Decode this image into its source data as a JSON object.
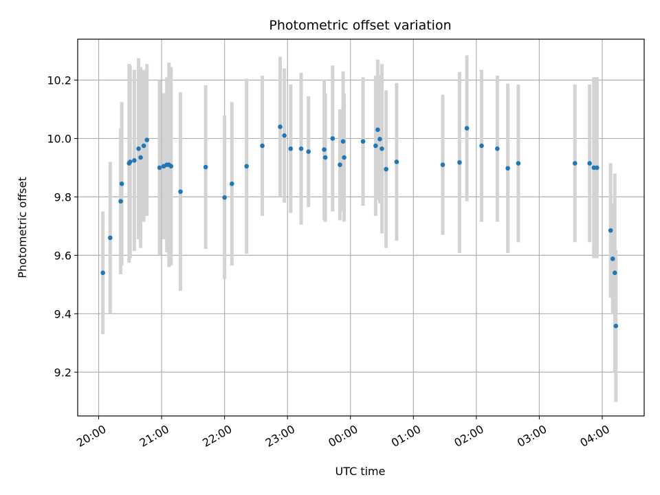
{
  "chart_data": {
    "type": "scatter",
    "title": "Photometric offset variation",
    "xlabel": "UTC time",
    "ylabel": "Photometric offset",
    "x_unit": "UTC time (HH:MM), times after midnight fall on the following day",
    "xlim": [
      "19:40",
      "04:40"
    ],
    "ylim": [
      9.05,
      10.34
    ],
    "x_ticks": [
      "20:00",
      "21:00",
      "22:00",
      "23:00",
      "00:00",
      "01:00",
      "02:00",
      "03:00",
      "04:00"
    ],
    "y_ticks": [
      9.2,
      9.4,
      9.6,
      9.8,
      10.0,
      10.2
    ],
    "grid": true,
    "colors": {
      "points": "#1f77b4",
      "errorbars": "#d3d3d3",
      "grid": "#b0b0b0"
    },
    "series": [
      {
        "points": [
          {
            "x": "20:04",
            "y": 9.54,
            "err": 0.21
          },
          {
            "x": "20:11",
            "y": 9.66,
            "err": 0.26
          },
          {
            "x": "20:21",
            "y": 9.785,
            "err": 0.25
          },
          {
            "x": "20:22",
            "y": 9.845,
            "err": 0.28
          },
          {
            "x": "20:29",
            "y": 9.915,
            "err": 0.34
          },
          {
            "x": "20:30",
            "y": 9.92,
            "err": 0.33
          },
          {
            "x": "20:34",
            "y": 9.925,
            "err": 0.31
          },
          {
            "x": "20:38",
            "y": 9.965,
            "err": 0.31
          },
          {
            "x": "20:40",
            "y": 9.935,
            "err": 0.31
          },
          {
            "x": "20:43",
            "y": 9.975,
            "err": 0.26
          },
          {
            "x": "20:46",
            "y": 9.995,
            "err": 0.26
          },
          {
            "x": "20:58",
            "y": 9.9,
            "err": 0.3
          },
          {
            "x": "21:02",
            "y": 9.905,
            "err": 0.25
          },
          {
            "x": "21:05",
            "y": 9.91,
            "err": 0.3
          },
          {
            "x": "21:07",
            "y": 9.91,
            "err": 0.35
          },
          {
            "x": "21:09",
            "y": 9.905,
            "err": 0.34
          },
          {
            "x": "21:18",
            "y": 9.818,
            "err": 0.34
          },
          {
            "x": "21:42",
            "y": 9.902,
            "err": 0.28
          },
          {
            "x": "22:00",
            "y": 9.798,
            "err": 0.28
          },
          {
            "x": "22:07",
            "y": 9.845,
            "err": 0.28
          },
          {
            "x": "22:21",
            "y": 9.905,
            "err": 0.3
          },
          {
            "x": "22:36",
            "y": 9.975,
            "err": 0.24
          },
          {
            "x": "22:53",
            "y": 10.04,
            "err": 0.24
          },
          {
            "x": "22:57",
            "y": 10.01,
            "err": 0.23
          },
          {
            "x": "23:03",
            "y": 9.965,
            "err": 0.22
          },
          {
            "x": "23:13",
            "y": 9.965,
            "err": 0.26
          },
          {
            "x": "23:20",
            "y": 9.955,
            "err": 0.19
          },
          {
            "x": "23:35",
            "y": 9.962,
            "err": 0.24
          },
          {
            "x": "23:36",
            "y": 9.935,
            "err": 0.22
          },
          {
            "x": "23:43",
            "y": 10.0,
            "err": 0.25
          },
          {
            "x": "23:50",
            "y": 9.91,
            "err": 0.19
          },
          {
            "x": "23:53",
            "y": 9.99,
            "err": 0.24
          },
          {
            "x": "23:54",
            "y": 9.935,
            "err": 0.22
          },
          {
            "x": "00:12",
            "y": 9.99,
            "err": 0.22
          },
          {
            "x": "00:24",
            "y": 9.975,
            "err": 0.24
          },
          {
            "x": "00:26",
            "y": 10.03,
            "err": 0.24
          },
          {
            "x": "00:28",
            "y": 9.998,
            "err": 0.22
          },
          {
            "x": "00:30",
            "y": 9.965,
            "err": 0.29
          },
          {
            "x": "00:34",
            "y": 9.895,
            "err": 0.27
          },
          {
            "x": "00:44",
            "y": 9.92,
            "err": 0.27
          },
          {
            "x": "01:28",
            "y": 9.91,
            "err": 0.24
          },
          {
            "x": "01:44",
            "y": 9.918,
            "err": 0.31
          },
          {
            "x": "01:51",
            "y": 10.035,
            "err": 0.25
          },
          {
            "x": "02:05",
            "y": 9.975,
            "err": 0.26
          },
          {
            "x": "02:20",
            "y": 9.965,
            "err": 0.25
          },
          {
            "x": "02:30",
            "y": 9.898,
            "err": 0.29
          },
          {
            "x": "02:40",
            "y": 9.915,
            "err": 0.27
          },
          {
            "x": "03:34",
            "y": 9.915,
            "err": 0.27
          },
          {
            "x": "03:48",
            "y": 9.915,
            "err": 0.27
          },
          {
            "x": "03:52",
            "y": 9.9,
            "err": 0.31
          },
          {
            "x": "03:55",
            "y": 9.9,
            "err": 0.31
          },
          {
            "x": "04:08",
            "y": 9.685,
            "err": 0.23
          },
          {
            "x": "04:10",
            "y": 9.588,
            "err": 0.19
          },
          {
            "x": "04:12",
            "y": 9.54,
            "err": 0.34
          },
          {
            "x": "04:13",
            "y": 9.358,
            "err": 0.26
          }
        ]
      }
    ]
  }
}
